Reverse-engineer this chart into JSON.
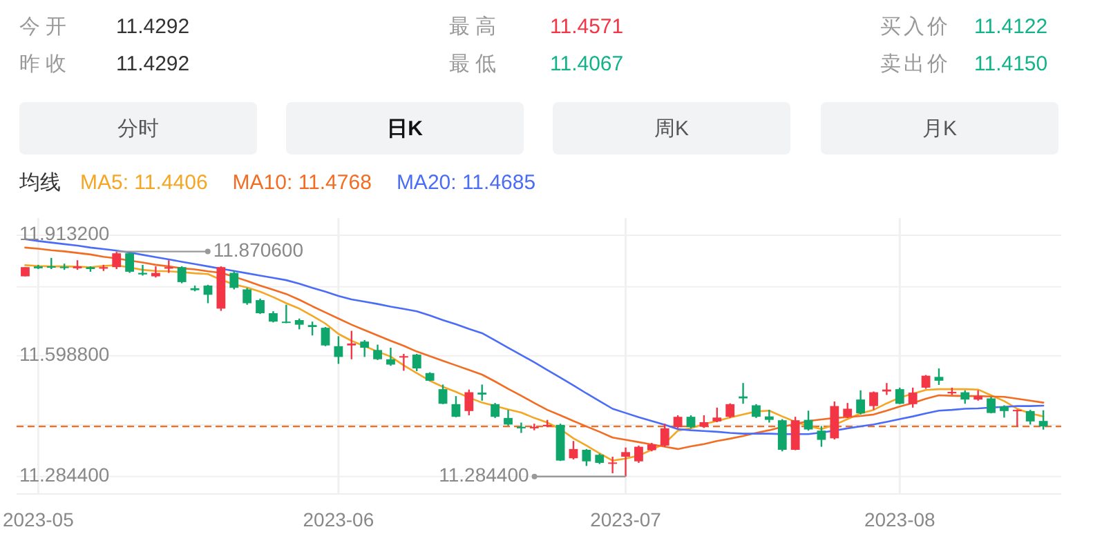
{
  "chart_data": [
    {
      "type": "other",
      "annotations": [
        "今 开",
        "11.4292",
        "昨 收",
        "11.4292",
        "最 高",
        "11.4571",
        "最 低",
        "11.4067",
        "买入价",
        "11.4122",
        "卖出价",
        "11.4150",
        "分时",
        "日K",
        "周K",
        "月K"
      ],
      "colors": [
        "#333333",
        "#333333",
        "#f23645",
        "#13b38a",
        "#13b38a",
        "#13b38a"
      ]
    },
    {
      "type": "candlestick",
      "legend_title": "均线",
      "legend": "top left",
      "grid": true,
      "categories": [
        null,
        "2023-05",
        null,
        null,
        null,
        null,
        null,
        null,
        null,
        null,
        null,
        null,
        null,
        null,
        null,
        null,
        null,
        null,
        null,
        null,
        null,
        null,
        null,
        null,
        "2023-06",
        null,
        null,
        null,
        null,
        null,
        null,
        null,
        null,
        null,
        null,
        null,
        null,
        null,
        null,
        null,
        null,
        null,
        null,
        null,
        null,
        null,
        "2023-07",
        null,
        null,
        null,
        null,
        null,
        null,
        null,
        null,
        null,
        null,
        null,
        null,
        null,
        null,
        null,
        null,
        null,
        null,
        null,
        null,
        "2023-08",
        null,
        null,
        null,
        null,
        null,
        null,
        null,
        null,
        null,
        null,
        null
      ],
      "ylim": [
        11.239,
        11.958
      ],
      "yticks": [
        {
          "value": 11.9132,
          "label": "11.913200"
        },
        {
          "value": 11.7785,
          "label": null
        },
        {
          "value": 11.5988,
          "label": "11.598800"
        },
        {
          "value": 11.4188,
          "label": null
        },
        {
          "value": 11.2844,
          "label": "11.284400"
        }
      ],
      "ohlc": [
        [
          11.806,
          11.83,
          11.806,
          11.83
        ],
        [
          11.832,
          11.836,
          11.825,
          11.827
        ],
        [
          11.832,
          11.854,
          11.825,
          11.829
        ],
        [
          11.831,
          11.839,
          11.823,
          11.829
        ],
        [
          11.827,
          11.848,
          11.823,
          11.832
        ],
        [
          11.83,
          11.832,
          11.818,
          11.825
        ],
        [
          11.826,
          11.836,
          11.82,
          11.83
        ],
        [
          11.83,
          11.8706,
          11.825,
          11.866
        ],
        [
          11.866,
          11.868,
          11.815,
          11.818
        ],
        [
          11.815,
          11.836,
          11.808,
          11.811
        ],
        [
          11.806,
          11.832,
          11.803,
          11.815
        ],
        [
          11.826,
          11.848,
          11.815,
          11.83
        ],
        [
          11.83,
          11.832,
          11.788,
          11.791
        ],
        [
          11.775,
          11.782,
          11.767,
          11.77
        ],
        [
          11.782,
          11.784,
          11.736,
          11.758
        ],
        [
          11.722,
          11.832,
          11.716,
          11.83
        ],
        [
          11.815,
          11.82,
          11.772,
          11.776
        ],
        [
          11.772,
          11.776,
          11.732,
          11.736
        ],
        [
          11.744,
          11.748,
          11.708,
          11.71
        ],
        [
          11.71,
          11.715,
          11.686,
          11.688
        ],
        [
          11.688,
          11.732,
          11.684,
          11.685
        ],
        [
          11.692,
          11.696,
          11.668,
          11.68
        ],
        [
          11.679,
          11.688,
          11.652,
          11.674
        ],
        [
          11.672,
          11.674,
          11.624,
          11.626
        ],
        [
          11.624,
          11.65,
          11.578,
          11.596
        ],
        [
          11.626,
          11.664,
          11.59,
          11.631
        ],
        [
          11.636,
          11.64,
          11.596,
          11.62
        ],
        [
          11.614,
          11.628,
          11.588,
          11.59
        ],
        [
          11.59,
          11.62,
          11.573,
          11.576
        ],
        [
          11.595,
          11.604,
          11.56,
          11.598
        ],
        [
          11.602,
          11.604,
          11.559,
          11.566
        ],
        [
          11.554,
          11.556,
          11.533,
          11.534
        ],
        [
          11.512,
          11.524,
          11.473,
          11.474
        ],
        [
          11.473,
          11.494,
          11.439,
          11.44
        ],
        [
          11.455,
          11.511,
          11.444,
          11.504
        ],
        [
          11.503,
          11.524,
          11.482,
          11.498
        ],
        [
          11.473,
          11.476,
          11.437,
          11.44
        ],
        [
          11.437,
          11.458,
          11.417,
          11.42
        ],
        [
          11.414,
          11.425,
          11.398,
          11.41
        ],
        [
          11.41,
          11.422,
          11.405,
          11.414
        ],
        [
          11.415,
          11.432,
          11.413,
          11.419
        ],
        [
          11.419,
          11.422,
          11.325,
          11.326
        ],
        [
          11.332,
          11.377,
          11.329,
          11.356
        ],
        [
          11.354,
          11.356,
          11.312,
          11.324
        ],
        [
          11.341,
          11.344,
          11.317,
          11.32
        ],
        [
          11.318,
          11.336,
          11.293,
          11.321
        ],
        [
          11.336,
          11.36,
          11.2844,
          11.348
        ],
        [
          11.324,
          11.365,
          11.32,
          11.362
        ],
        [
          11.353,
          11.372,
          11.35,
          11.368
        ],
        [
          11.365,
          11.422,
          11.362,
          11.41
        ],
        [
          11.413,
          11.444,
          11.41,
          11.44
        ],
        [
          11.44,
          11.444,
          11.41,
          11.413
        ],
        [
          11.414,
          11.444,
          11.411,
          11.426
        ],
        [
          11.428,
          11.464,
          11.426,
          11.438
        ],
        [
          11.44,
          11.475,
          11.437,
          11.473
        ],
        [
          11.493,
          11.528,
          11.474,
          11.488
        ],
        [
          11.47,
          11.473,
          11.437,
          11.44
        ],
        [
          11.441,
          11.458,
          11.425,
          11.432
        ],
        [
          11.431,
          11.434,
          11.35,
          11.354
        ],
        [
          11.354,
          11.44,
          11.353,
          11.431
        ],
        [
          11.432,
          11.456,
          11.404,
          11.407
        ],
        [
          11.404,
          11.416,
          11.362,
          11.38
        ],
        [
          11.384,
          11.48,
          11.381,
          11.468
        ],
        [
          11.44,
          11.476,
          11.437,
          11.461
        ],
        [
          11.485,
          11.509,
          11.446,
          11.449
        ],
        [
          11.468,
          11.506,
          11.458,
          11.504
        ],
        [
          11.506,
          11.528,
          11.497,
          11.511
        ],
        [
          11.512,
          11.516,
          11.473,
          11.474
        ],
        [
          11.473,
          11.516,
          11.464,
          11.503
        ],
        [
          11.516,
          11.549,
          11.513,
          11.547
        ],
        [
          11.544,
          11.566,
          11.523,
          11.534
        ],
        [
          11.501,
          11.516,
          11.497,
          11.505
        ],
        [
          11.504,
          11.509,
          11.474,
          11.485
        ],
        [
          11.485,
          11.509,
          11.482,
          11.494
        ],
        [
          11.488,
          11.492,
          11.449,
          11.45
        ],
        [
          11.467,
          11.47,
          11.438,
          11.455
        ],
        [
          11.456,
          11.459,
          11.414,
          11.458
        ],
        [
          11.455,
          11.458,
          11.42,
          11.428
        ],
        [
          11.4292,
          11.4571,
          11.4067,
          11.415
        ]
      ],
      "series": [
        {
          "name": "MA5: 11.4406",
          "type": "line",
          "color": "#f5a623",
          "values": [
            11.835,
            11.833,
            11.832,
            11.832,
            11.831,
            11.83,
            11.833,
            11.835,
            11.829,
            11.823,
            11.82,
            11.819,
            11.817,
            11.814,
            11.812,
            11.797,
            11.785,
            11.777,
            11.766,
            11.752,
            11.736,
            11.722,
            11.703,
            11.683,
            11.656,
            11.638,
            11.624,
            11.61,
            11.597,
            11.574,
            11.554,
            11.534,
            11.518,
            11.505,
            11.49,
            11.477,
            11.468,
            11.459,
            11.451,
            11.437,
            11.425,
            11.408,
            11.384,
            11.365,
            11.345,
            11.326,
            11.331,
            11.339,
            11.354,
            11.371,
            11.404,
            11.41,
            11.421,
            11.429,
            11.438,
            11.446,
            11.454,
            11.456,
            11.441,
            11.427,
            11.416,
            11.408,
            11.419,
            11.434,
            11.449,
            11.458,
            11.475,
            11.49,
            11.5,
            11.51,
            11.512,
            11.512,
            11.512,
            11.511,
            11.496,
            11.481,
            11.461,
            11.449,
            11.441
          ]
        },
        {
          "name": "MA10: 11.4768",
          "type": "line",
          "color": "#f26c22",
          "values": [
            11.881,
            11.878,
            11.874,
            11.871,
            11.867,
            11.863,
            11.857,
            11.853,
            11.847,
            11.842,
            11.836,
            11.832,
            11.827,
            11.824,
            11.819,
            11.815,
            11.805,
            11.794,
            11.782,
            11.771,
            11.76,
            11.745,
            11.728,
            11.712,
            11.696,
            11.68,
            11.666,
            11.652,
            11.638,
            11.625,
            11.61,
            11.598,
            11.586,
            11.574,
            11.562,
            11.55,
            11.532,
            11.513,
            11.495,
            11.476,
            11.458,
            11.444,
            11.429,
            11.415,
            11.401,
            11.386,
            11.38,
            11.374,
            11.368,
            11.362,
            11.356,
            11.363,
            11.369,
            11.377,
            11.383,
            11.39,
            11.398,
            11.405,
            11.414,
            11.421,
            11.429,
            11.433,
            11.437,
            11.439,
            11.442,
            11.446,
            11.456,
            11.467,
            11.476,
            11.487,
            11.496,
            11.495,
            11.494,
            11.494,
            11.493,
            11.492,
            11.487,
            11.482,
            11.477
          ]
        },
        {
          "name": "MA20: 11.4685",
          "type": "line",
          "color": "#4a6cf7",
          "values": [
            11.903,
            11.898,
            11.894,
            11.89,
            11.886,
            11.881,
            11.877,
            11.873,
            11.868,
            11.862,
            11.856,
            11.85,
            11.844,
            11.838,
            11.832,
            11.826,
            11.82,
            11.814,
            11.808,
            11.802,
            11.796,
            11.787,
            11.776,
            11.766,
            11.755,
            11.746,
            11.74,
            11.734,
            11.727,
            11.721,
            11.715,
            11.704,
            11.692,
            11.681,
            11.669,
            11.658,
            11.639,
            11.62,
            11.601,
            11.582,
            11.562,
            11.542,
            11.522,
            11.501,
            11.481,
            11.461,
            11.45,
            11.439,
            11.429,
            11.419,
            11.408,
            11.405,
            11.403,
            11.401,
            11.398,
            11.396,
            11.396,
            11.396,
            11.395,
            11.395,
            11.395,
            11.399,
            11.404,
            11.41,
            11.415,
            11.42,
            11.427,
            11.434,
            11.441,
            11.449,
            11.456,
            11.458,
            11.461,
            11.462,
            11.464,
            11.466,
            11.468,
            11.468,
            11.469
          ]
        }
      ],
      "ref_lines": [
        {
          "axis": "y",
          "value": 11.415,
          "color": "#f26c22",
          "line_style": "dashed"
        }
      ],
      "annotations": [
        "11.870600",
        "11.284400"
      ]
    }
  ]
}
